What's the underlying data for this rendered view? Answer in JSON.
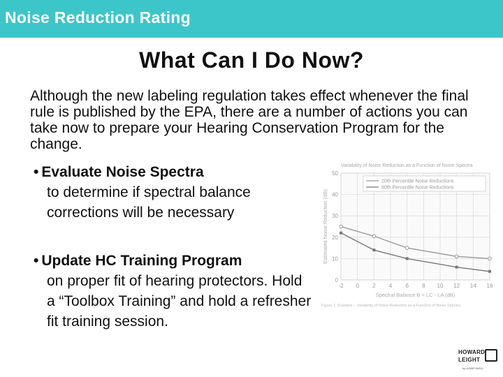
{
  "header": {
    "title": "Noise Reduction Rating"
  },
  "slide": {
    "title": "What Can I Do Now?",
    "intro": "Although the new labeling regulation takes effect whenever the final rule is published by the EPA, there are a number of actions you can take now to prepare your Hearing Conservation Program for the change.",
    "bullets": [
      {
        "heading": "Evaluate Noise Spectra",
        "body": "to determine if spectral balance corrections will be necessary"
      },
      {
        "heading": "Update HC Training Program",
        "body": "on proper fit of hearing protectors. Hold a “Toolbox Training” and hold a refresher fit training session."
      }
    ],
    "bullet_symbol": "•"
  },
  "chart_data": {
    "type": "line",
    "title": "Variability of Noise Reduction as a Function of Noise Spectra",
    "xlabel": "Spectral Balance B = LC - LA (dB)",
    "ylabel": "Estimated Noise Reduction (dB)",
    "caption": "Figure 1. Example – Variability of Noise Reduction as a Function of Noise Spectra",
    "xlim": [
      -2,
      16
    ],
    "ylim": [
      0,
      50
    ],
    "xticks": [
      "-2",
      "0",
      "2",
      "4",
      "6",
      "8",
      "10",
      "12",
      "14",
      "16"
    ],
    "yticks": [
      "0",
      "10",
      "20",
      "30",
      "40",
      "50"
    ],
    "x": [
      -2,
      2,
      6,
      12,
      16
    ],
    "series": [
      {
        "name": "20th Percentile Noise Reductions",
        "values": [
          25,
          20.5,
          15,
          11,
          10
        ],
        "color": "#999999"
      },
      {
        "name": "80th Percentile Noise Reductions",
        "values": [
          22,
          14,
          10,
          6,
          4
        ],
        "color": "#777777"
      }
    ],
    "grid": true,
    "legend": "top-right"
  },
  "logo": {
    "line1": "HOWARD",
    "line2": "LEIGHT",
    "sub": "by HONEYWELL"
  }
}
